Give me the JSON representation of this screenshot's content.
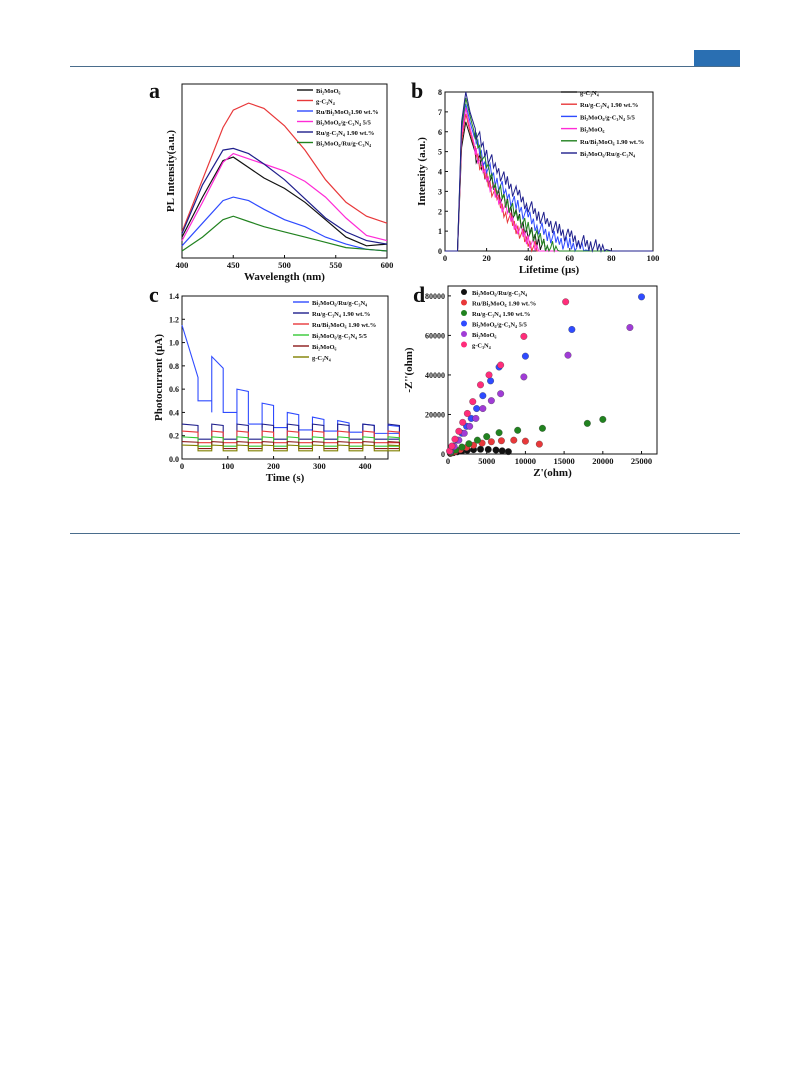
{
  "colors": {
    "black": "#111111",
    "red": "#e8383a",
    "blue": "#2f4bff",
    "magenta": "#ff2bd6",
    "navy": "#1f1f8c",
    "green": "#21821f",
    "light_green": "#35c935",
    "maroon": "#8b1a1a",
    "olive": "#808000",
    "purple": "#a03cd6",
    "pink": "#ff2d7a",
    "header_tab": "#2a6fb2",
    "rule": "#4a6d8c"
  },
  "chart_data": [
    {
      "panel": "a",
      "type": "line",
      "xlabel": "Wavelength (nm)",
      "ylabel": "PL Intensity(a.u.)",
      "xlim": [
        400,
        600
      ],
      "xticks": [
        "400",
        "450",
        "500",
        "550",
        "600"
      ],
      "yticks_shown": false,
      "x": [
        400,
        420,
        440,
        450,
        465,
        480,
        500,
        520,
        540,
        560,
        580,
        600
      ],
      "series": [
        {
          "name": "Bi2MoO6",
          "color": "black",
          "values": [
            0.12,
            0.35,
            0.56,
            0.58,
            0.52,
            0.46,
            0.4,
            0.32,
            0.22,
            0.12,
            0.07,
            0.08
          ]
        },
        {
          "name": "g-C3N4",
          "color": "red",
          "values": [
            0.15,
            0.45,
            0.75,
            0.85,
            0.89,
            0.86,
            0.76,
            0.62,
            0.45,
            0.32,
            0.24,
            0.2
          ]
        },
        {
          "name": "Ru/Bi2MoO6 1.90 wt.%",
          "color": "blue",
          "values": [
            0.07,
            0.2,
            0.33,
            0.35,
            0.33,
            0.28,
            0.22,
            0.18,
            0.12,
            0.08,
            0.05,
            0.04
          ]
        },
        {
          "name": "Bi2MoO6/g-C3N4 5/5",
          "color": "magenta",
          "values": [
            0.1,
            0.32,
            0.55,
            0.6,
            0.57,
            0.54,
            0.5,
            0.44,
            0.35,
            0.23,
            0.13,
            0.1
          ]
        },
        {
          "name": "Ru/g-C3N4 1.90 wt.%",
          "color": "navy",
          "values": [
            0.14,
            0.42,
            0.62,
            0.63,
            0.6,
            0.54,
            0.45,
            0.34,
            0.23,
            0.15,
            0.1,
            0.08
          ]
        },
        {
          "name": "Bi2MoO6/Ru/g-C3N4",
          "color": "green",
          "values": [
            0.04,
            0.12,
            0.22,
            0.24,
            0.21,
            0.18,
            0.15,
            0.12,
            0.09,
            0.06,
            0.05,
            0.04
          ]
        }
      ]
    },
    {
      "panel": "b",
      "type": "line",
      "xlabel": "Lifetime (μs)",
      "ylabel": "Intensity (a.u.)",
      "xlim": [
        0,
        100
      ],
      "ylim": [
        0,
        8
      ],
      "xticks": [
        "0",
        "20",
        "40",
        "60",
        "80",
        "100"
      ],
      "yticks": [
        "0",
        "1",
        "2",
        "3",
        "4",
        "5",
        "6",
        "7",
        "8"
      ],
      "x": [
        0,
        6,
        8,
        10,
        12,
        15,
        20,
        25,
        30,
        35,
        40,
        45,
        50,
        55,
        60,
        65,
        70,
        75,
        80,
        85,
        100
      ],
      "series": [
        {
          "name": "g-C3N4",
          "color": "black",
          "values": [
            0.0,
            0.0,
            5.2,
            6.5,
            5.8,
            4.8,
            3.8,
            3.0,
            2.3,
            1.6,
            1.0,
            0.5,
            0.0,
            0.0,
            0.0,
            0.0,
            0.0,
            0.0,
            0.0,
            0.0,
            0.0
          ]
        },
        {
          "name": "Ru/g-C3N4 1.90 wt.%",
          "color": "red",
          "values": [
            0.0,
            0.0,
            5.5,
            6.9,
            6.0,
            4.9,
            3.6,
            2.6,
            1.8,
            1.1,
            0.4,
            0.0,
            0.0,
            0.0,
            0.0,
            0.0,
            0.0,
            0.0,
            0.0,
            0.0,
            0.0
          ]
        },
        {
          "name": "Bi2MoO6/g-C3N4 5/5",
          "color": "blue",
          "values": [
            0.0,
            0.0,
            6.0,
            7.4,
            6.5,
            5.4,
            4.3,
            3.5,
            2.8,
            2.2,
            1.7,
            1.2,
            0.8,
            0.5,
            0.3,
            0.1,
            0.0,
            0.0,
            0.0,
            0.0,
            0.0
          ]
        },
        {
          "name": "Bi2MoO6",
          "color": "magenta",
          "values": [
            0.0,
            0.0,
            5.8,
            7.2,
            6.2,
            5.0,
            3.7,
            2.7,
            1.9,
            1.2,
            0.6,
            0.0,
            0.0,
            0.0,
            0.0,
            0.0,
            0.0,
            0.0,
            0.0,
            0.0,
            0.0
          ]
        },
        {
          "name": "Ru/Bi2MoO6 1.90 wt.%",
          "color": "green",
          "values": [
            0.0,
            0.0,
            6.2,
            7.7,
            6.8,
            5.6,
            4.2,
            3.2,
            2.4,
            1.7,
            1.1,
            0.6,
            0.2,
            0.0,
            0.0,
            0.0,
            0.0,
            0.0,
            0.0,
            0.0,
            0.0
          ]
        },
        {
          "name": "Bi2MoO6/Ru/g-C3N4",
          "color": "navy",
          "values": [
            0.0,
            0.0,
            6.5,
            8.0,
            7.0,
            6.0,
            4.9,
            4.1,
            3.4,
            2.8,
            2.3,
            1.8,
            1.4,
            1.0,
            0.7,
            0.5,
            0.3,
            0.15,
            0.0,
            0.0,
            0.0
          ]
        }
      ]
    },
    {
      "panel": "c",
      "type": "line",
      "xlabel": "Time (s)",
      "ylabel": "Photocurrent (μA)",
      "xlim": [
        0,
        450
      ],
      "ylim": [
        0.0,
        1.4
      ],
      "xticks": [
        "0",
        "100",
        "200",
        "300",
        "400"
      ],
      "yticks": [
        "0.0",
        "0.2",
        "0.4",
        "0.6",
        "0.8",
        "1.0",
        "1.2",
        "1.4"
      ],
      "period_s": 55,
      "on_duration_s": 25,
      "series": [
        {
          "name": "Bi2MoO6/Ru/g-C3N4",
          "color": "blue",
          "on_start": [
            1.15,
            0.88,
            0.6,
            0.48,
            0.4,
            0.36,
            0.33,
            0.3,
            0.29
          ],
          "on_end": [
            0.7,
            0.78,
            0.58,
            0.46,
            0.38,
            0.34,
            0.31,
            0.29,
            0.28
          ],
          "off": [
            0.5,
            0.4,
            0.3,
            0.27,
            0.25,
            0.24,
            0.23,
            0.22,
            0.22
          ]
        },
        {
          "name": "Ru/g-C3N4 1.90 wt.%",
          "color": "navy",
          "on_level": 0.3,
          "off": 0.17
        },
        {
          "name": "Ru/Bi2MoO6 1.90 wt.%",
          "color": "red",
          "on_level": 0.24,
          "off": 0.14
        },
        {
          "name": "Bi2MoO6/g-C3N4 5/5",
          "color": "light_green",
          "on_level": 0.19,
          "off": 0.11
        },
        {
          "name": "Bi2MoO6",
          "color": "maroon",
          "on_level": 0.15,
          "off": 0.09
        },
        {
          "name": "g-C3N4",
          "color": "olive",
          "on_level": 0.12,
          "off": 0.07
        }
      ]
    },
    {
      "panel": "d",
      "type": "scatter",
      "xlabel": "Z'(ohm)",
      "ylabel": "-Z''(ohm)",
      "xlim": [
        0,
        27000
      ],
      "ylim": [
        0,
        85000
      ],
      "xticks": [
        "0",
        "5000",
        "10000",
        "15000",
        "20000",
        "25000"
      ],
      "yticks": [
        "0",
        "20000",
        "40000",
        "60000",
        "80000"
      ],
      "series": [
        {
          "name": "Bi2MoO6/Ru/g-C3N4",
          "color": "black",
          "points": [
            [
              300,
              300
            ],
            [
              700,
              700
            ],
            [
              1200,
              1100
            ],
            [
              1800,
              1500
            ],
            [
              2500,
              1900
            ],
            [
              3300,
              2200
            ],
            [
              4200,
              2400
            ],
            [
              5200,
              2300
            ],
            [
              6200,
              2000
            ],
            [
              7000,
              1600
            ],
            [
              7800,
              1200
            ]
          ]
        },
        {
          "name": "Ru/Bi2MoO6 1.90 wt.%",
          "color": "red",
          "points": [
            [
              400,
              500
            ],
            [
              900,
              1200
            ],
            [
              1600,
              2200
            ],
            [
              2400,
              3300
            ],
            [
              3300,
              4400
            ],
            [
              4400,
              5500
            ],
            [
              5600,
              6200
            ],
            [
              6900,
              6700
            ],
            [
              8500,
              7000
            ],
            [
              10000,
              6500
            ],
            [
              11800,
              5000
            ]
          ]
        },
        {
          "name": "Ru/g-C3N4 1.90 wt.%",
          "color": "green",
          "points": [
            [
              400,
              800
            ],
            [
              1000,
              2000
            ],
            [
              1800,
              3500
            ],
            [
              2700,
              5200
            ],
            [
              3800,
              7000
            ],
            [
              5000,
              8800
            ],
            [
              6600,
              10800
            ],
            [
              9000,
              12000
            ],
            [
              12200,
              13000
            ],
            [
              18000,
              15500
            ],
            [
              20000,
              17500
            ]
          ]
        },
        {
          "name": "Bi2MoO6/g-C3N4 5/5",
          "color": "blue",
          "points": [
            [
              300,
              1500
            ],
            [
              700,
              4000
            ],
            [
              1200,
              7000
            ],
            [
              1800,
              10500
            ],
            [
              2400,
              14000
            ],
            [
              3000,
              18000
            ],
            [
              3700,
              23000
            ],
            [
              4500,
              29500
            ],
            [
              5500,
              37000
            ],
            [
              6600,
              44000
            ],
            [
              10000,
              49500
            ],
            [
              16000,
              63000
            ],
            [
              25000,
              79500
            ]
          ]
        },
        {
          "name": "Bi2MoO6",
          "color": "purple",
          "points": [
            [
              300,
              1300
            ],
            [
              800,
              3800
            ],
            [
              1400,
              7000
            ],
            [
              2100,
              10500
            ],
            [
              2800,
              14000
            ],
            [
              3600,
              18000
            ],
            [
              4500,
              23000
            ],
            [
              5600,
              27000
            ],
            [
              6800,
              30500
            ],
            [
              9800,
              39000
            ],
            [
              15500,
              50000
            ],
            [
              23500,
              64000
            ]
          ]
        },
        {
          "name": "g-C3N4",
          "color": "pink",
          "points": [
            [
              200,
              1500
            ],
            [
              500,
              4000
            ],
            [
              900,
              7500
            ],
            [
              1400,
              11500
            ],
            [
              1900,
              16000
            ],
            [
              2500,
              20500
            ],
            [
              3200,
              26500
            ],
            [
              4200,
              35000
            ],
            [
              5300,
              40000
            ],
            [
              6800,
              45000
            ],
            [
              9800,
              59500
            ],
            [
              15200,
              77000
            ]
          ]
        }
      ]
    }
  ],
  "panel_labels": [
    "a",
    "b",
    "c",
    "d"
  ],
  "legend_labels": {
    "a": [
      "Bi₂MoO₆",
      "g-C₃N₄",
      "Ru/Bi₂MoO₆1.90 wt.%",
      "Bi₂MoO₆/g-C₃N₄ 5/5",
      "Ru/g-C₃N₄  1.90 wt.%",
      "Bi₂MoO₆/Ru/g-C₃N₄"
    ],
    "b": [
      "g-C₃N₄",
      "Ru/g-C₃N₄ 1.90 wt.%",
      "Bi₂MoO₆/g-C₃N₄  5/5",
      "Bi₂MoO₆",
      "Ru/Bi₂MoO₆ 1.90 wt.%",
      "Bi₂MoO₆/Ru/g-C₃N₄"
    ],
    "c": [
      "Bi₂MoO₆/Ru/g-C₃N₄",
      "Ru/g-C₃N₄ 1.90 wt.%",
      "Ru/Bi₂MoO₆ 1.90 wt.%",
      "Bi₂MoO₆/g-C₃N₄  5/5",
      "Bi₂MoO₆",
      "g-C₃N₄"
    ],
    "d": [
      "Bi₂MoO₆/Ru/g-C₃N₄",
      "Ru/Bi₂MoO₆ 1.90 wt.%",
      "Ru/g-C₃N₄ 1.90 wt.%",
      "Bi₂MoO₆/g-C₃N₄ 5/5",
      "Bi₂MoO₆",
      "g-C₃N₄"
    ]
  }
}
